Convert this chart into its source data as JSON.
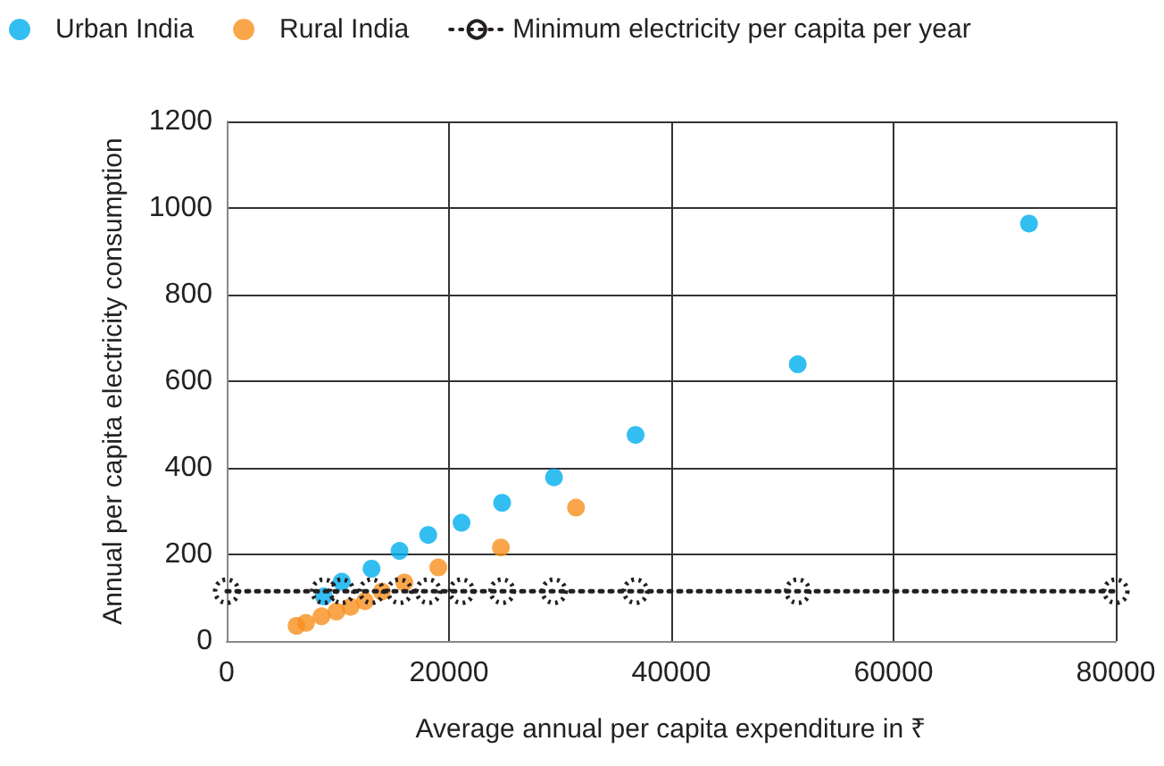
{
  "chart_data": {
    "type": "scatter",
    "xlabel": "Average annual per capita expenditure in ₹",
    "ylabel": "Annual per capita electricity consumption",
    "xlim": [
      0,
      80000
    ],
    "xticks": [
      0,
      20000,
      40000,
      60000,
      80000
    ],
    "ylim": [
      0,
      1200
    ],
    "yticks": [
      0,
      200,
      400,
      600,
      800,
      1000,
      1200
    ],
    "grid": true,
    "legend": "top left",
    "marker": "circle",
    "series": [
      {
        "name": "Urban India",
        "color": "#00aeef",
        "x": [
          8740,
          10350,
          13030,
          15550,
          18130,
          21130,
          24780,
          29450,
          36790,
          51380,
          72190
        ],
        "values": [
          103,
          137,
          167,
          208,
          245,
          273,
          319,
          378,
          476,
          639,
          964
        ]
      },
      {
        "name": "Rural India",
        "color": "#f7901e",
        "x": [
          6280,
          7130,
          8530,
          9870,
          11150,
          12440,
          13950,
          15980,
          19040,
          24670,
          31430
        ],
        "values": [
          35,
          42,
          57,
          68,
          79,
          92,
          114,
          135,
          170,
          216,
          308
        ]
      },
      {
        "name": "Minimum electricity per capita per year",
        "type": "line",
        "color": "#231f20",
        "line_style": "dotted",
        "marker": "circle",
        "x": [
          0,
          8740,
          10350,
          13030,
          15550,
          18130,
          21130,
          24780,
          29450,
          36790,
          51380,
          80000
        ],
        "values": [
          115,
          115,
          115,
          115,
          115,
          115,
          115,
          115,
          115,
          115,
          115,
          115
        ]
      }
    ]
  }
}
